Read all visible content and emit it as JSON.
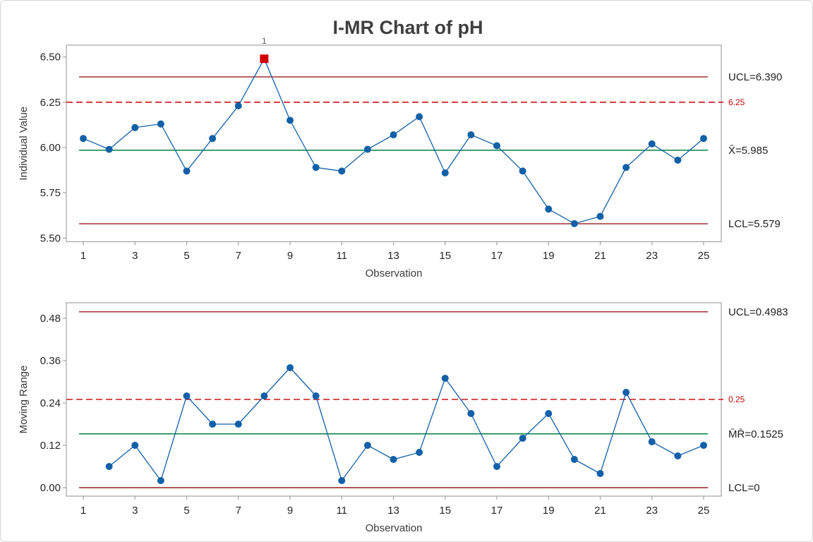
{
  "title": "I-MR Chart of pH",
  "style": {
    "point_color": "#1260a8",
    "series_line_color": "#1260a8",
    "center_line_color": "#008040",
    "control_limit_color": "#9c1c1f",
    "reference_line_color": "#cc1414",
    "flag_point_color": "#d00000",
    "flag_label_color": "#595959",
    "plot_border_color": "#a3a3a3"
  },
  "chart_data": [
    {
      "type": "line",
      "name": "individuals_chart",
      "ylabel": "Individual Value",
      "xlabel": "Observation",
      "x": [
        1,
        2,
        3,
        4,
        5,
        6,
        7,
        8,
        9,
        10,
        11,
        12,
        13,
        14,
        15,
        16,
        17,
        18,
        19,
        20,
        21,
        22,
        23,
        24,
        25
      ],
      "values": [
        6.05,
        5.99,
        6.11,
        6.13,
        5.87,
        6.05,
        6.23,
        6.49,
        6.15,
        5.89,
        5.87,
        5.99,
        6.07,
        6.17,
        5.86,
        6.07,
        6.01,
        5.87,
        5.66,
        5.58,
        5.62,
        5.89,
        6.02,
        5.93,
        6.05
      ],
      "center": {
        "value": 5.985,
        "label": "X̄=5.985"
      },
      "ucl": {
        "value": 6.39,
        "label": "UCL=6.390"
      },
      "lcl": {
        "value": 5.579,
        "label": "LCL=5.579"
      },
      "reference": {
        "value": 6.25,
        "label": "6.25"
      },
      "y_ticks": [
        "6.50",
        "6.25",
        "6.00",
        "5.75",
        "5.50"
      ],
      "x_ticks": [
        1,
        3,
        5,
        7,
        9,
        11,
        13,
        15,
        17,
        19,
        21,
        23,
        25
      ],
      "ylim": [
        5.48,
        6.565
      ],
      "grid": false,
      "flags": [
        {
          "x": 8,
          "label": "1"
        }
      ]
    },
    {
      "type": "line",
      "name": "moving_range_chart",
      "ylabel": "Moving Range",
      "xlabel": "Observation",
      "x": [
        2,
        3,
        4,
        5,
        6,
        7,
        8,
        9,
        10,
        11,
        12,
        13,
        14,
        15,
        16,
        17,
        18,
        19,
        20,
        21,
        22,
        23,
        24,
        25
      ],
      "values": [
        0.06,
        0.12,
        0.02,
        0.26,
        0.18,
        0.18,
        0.26,
        0.34,
        0.26,
        0.02,
        0.12,
        0.08,
        0.1,
        0.31,
        0.21,
        0.06,
        0.14,
        0.21,
        0.08,
        0.04,
        0.27,
        0.13,
        0.09,
        0.12
      ],
      "center": {
        "value": 0.1525,
        "label": "M̄R̄=0.1525"
      },
      "ucl": {
        "value": 0.4983,
        "label": "UCL=0.4983"
      },
      "lcl": {
        "value": 0,
        "label": "LCL=0"
      },
      "reference": {
        "value": 0.25,
        "label": "0.25"
      },
      "y_ticks": [
        "0.48",
        "0.36",
        "0.24",
        "0.12",
        "0.00"
      ],
      "x_ticks": [
        1,
        3,
        5,
        7,
        9,
        11,
        13,
        15,
        17,
        19,
        21,
        23,
        25
      ],
      "ylim": [
        -0.024,
        0.524
      ],
      "grid": false,
      "flags": []
    }
  ]
}
